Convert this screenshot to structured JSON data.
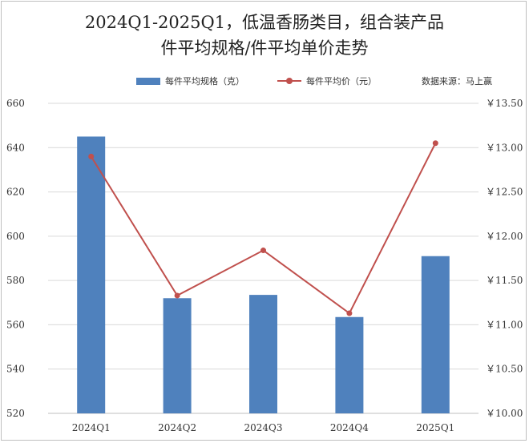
{
  "title_line1": "2024Q1-2025Q1，低温香肠类目，组合装产品",
  "title_line2": "件平均规格/件平均单价走势",
  "legend": {
    "bar_label": "每件平均规格（克）",
    "line_label": "每件平均价（元）"
  },
  "source": "数据来源：马上赢",
  "colors": {
    "bar": "#4f81bd",
    "line": "#c0504d",
    "grid": "#d9d9d9"
  },
  "chart_data": {
    "type": "bar+line",
    "categories": [
      "2024Q1",
      "2024Q2",
      "2024Q3",
      "2024Q4",
      "2025Q1"
    ],
    "series": [
      {
        "name": "每件平均规格（克）",
        "type": "bar",
        "axis": "left",
        "values": [
          645,
          572,
          573.5,
          563.5,
          591
        ]
      },
      {
        "name": "每件平均价（元）",
        "type": "line",
        "axis": "right",
        "values": [
          12.9,
          11.33,
          11.84,
          11.13,
          13.05
        ]
      }
    ],
    "y_left": {
      "ylim": [
        520,
        660
      ],
      "ticks": [
        "520",
        "540",
        "560",
        "580",
        "600",
        "620",
        "640",
        "660"
      ]
    },
    "y_right": {
      "ylim": [
        10.0,
        13.5
      ],
      "ticks": [
        "￥10.00",
        "￥10.50",
        "￥11.00",
        "￥11.50",
        "￥12.00",
        "￥12.50",
        "￥13.00",
        "￥13.50"
      ]
    },
    "grid": "horizontal"
  }
}
